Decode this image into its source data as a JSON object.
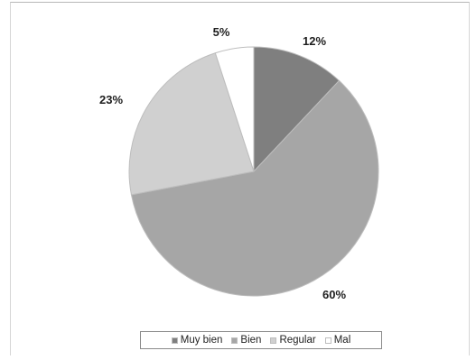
{
  "chart_data": {
    "type": "pie",
    "categories": [
      "Muy bien",
      "Bien",
      "Regular",
      "Mal"
    ],
    "values": [
      12,
      60,
      23,
      5
    ],
    "labels": [
      "12%",
      "60%",
      "23%",
      "5%"
    ],
    "colors": [
      "#7f7f7f",
      "#a6a6a6",
      "#d0d0d0",
      "#ffffff"
    ],
    "slice_stroke": "#bdbdbd",
    "start_angle_deg": 0,
    "direction": "clockwise",
    "legend_position": "bottom"
  }
}
